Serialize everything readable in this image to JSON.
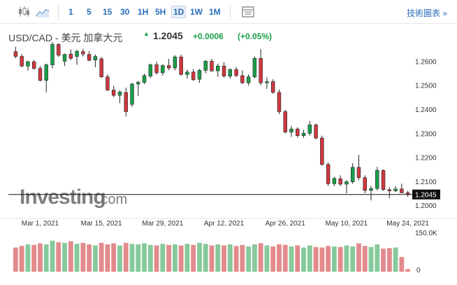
{
  "toolbar": {
    "intervals": [
      "1",
      "5",
      "15",
      "30",
      "1H",
      "5H",
      "1D",
      "1W",
      "1M"
    ],
    "active_interval": "1D",
    "tech_chart_label": "技術圖表 »",
    "icons": [
      "candlestick-icon",
      "line-chart-icon",
      "table-icon"
    ]
  },
  "header": {
    "pair": "USD/CAD - 美元 加拿大元",
    "price": "1.2045",
    "change": "+0.0006",
    "change_pct": "(+0.05%)",
    "up_color": "#1aa04a",
    "down_color": "#d0383e"
  },
  "watermark": {
    "brand": "Investing",
    "suffix": ".com"
  },
  "chart_data": {
    "type": "candlestick",
    "ylim": [
      1.198,
      1.268
    ],
    "y_ticks": [
      1.2,
      1.21,
      1.22,
      1.23,
      1.24,
      1.25,
      1.26
    ],
    "y_tick_labels": [
      "1.2000",
      "1.2100",
      "1.2200",
      "1.2300",
      "1.2400",
      "1.2500",
      "1.2600"
    ],
    "current_price": 1.2045,
    "current_price_label": "1.2045",
    "x_tick_labels": [
      "Mar 1, 2021",
      "Mar 15, 2021",
      "Mar 29, 2021",
      "Apr 12, 2021",
      "Apr 26, 2021",
      "May 10, 2021",
      "May 24, 2021"
    ],
    "x_tick_index": [
      4,
      14,
      24,
      34,
      44,
      54,
      64
    ],
    "ohlc": [
      [
        1.264,
        1.266,
        1.2612,
        1.262
      ],
      [
        1.262,
        1.263,
        1.2575,
        1.258
      ],
      [
        1.258,
        1.2602,
        1.256,
        1.2598
      ],
      [
        1.2598,
        1.2605,
        1.2565,
        1.257
      ],
      [
        1.257,
        1.258,
        1.2515,
        1.252
      ],
      [
        1.252,
        1.259,
        1.247,
        1.2585
      ],
      [
        1.2585,
        1.268,
        1.257,
        1.267
      ],
      [
        1.267,
        1.2675,
        1.2618,
        1.2625
      ],
      [
        1.26,
        1.2632,
        1.258,
        1.2628
      ],
      [
        1.263,
        1.2648,
        1.2605,
        1.2612
      ],
      [
        1.262,
        1.2648,
        1.2585,
        1.2641
      ],
      [
        1.264,
        1.2652,
        1.262,
        1.263
      ],
      [
        1.2628,
        1.2642,
        1.26,
        1.2604
      ],
      [
        1.2605,
        1.2628,
        1.2575,
        1.262
      ],
      [
        1.261,
        1.2618,
        1.253,
        1.2535
      ],
      [
        1.2535,
        1.2545,
        1.2475,
        1.248
      ],
      [
        1.248,
        1.2498,
        1.245,
        1.2458
      ],
      [
        1.2458,
        1.2478,
        1.2425,
        1.2472
      ],
      [
        1.247,
        1.249,
        1.237,
        1.239
      ],
      [
        1.242,
        1.251,
        1.241,
        1.2505
      ],
      [
        1.2505,
        1.2518,
        1.2455,
        1.2512
      ],
      [
        1.2512,
        1.2548,
        1.2505,
        1.254
      ],
      [
        1.2538,
        1.259,
        1.253,
        1.2585
      ],
      [
        1.2585,
        1.2598,
        1.2545,
        1.2552
      ],
      [
        1.2552,
        1.2588,
        1.254,
        1.2582
      ],
      [
        1.2582,
        1.261,
        1.2562,
        1.2572
      ],
      [
        1.2572,
        1.2625,
        1.2562,
        1.2618
      ],
      [
        1.2618,
        1.2628,
        1.254,
        1.2545
      ],
      [
        1.2545,
        1.2565,
        1.2528,
        1.2555
      ],
      [
        1.2555,
        1.2568,
        1.2518,
        1.2523
      ],
      [
        1.2525,
        1.2568,
        1.251,
        1.2562
      ],
      [
        1.2562,
        1.2605,
        1.255,
        1.26
      ],
      [
        1.26,
        1.261,
        1.2555,
        1.256
      ],
      [
        1.256,
        1.259,
        1.2535,
        1.258
      ],
      [
        1.258,
        1.2596,
        1.2532,
        1.2538
      ],
      [
        1.2538,
        1.257,
        1.2528,
        1.2565
      ],
      [
        1.2565,
        1.2575,
        1.2535,
        1.254
      ],
      [
        1.254,
        1.2562,
        1.2505,
        1.251
      ],
      [
        1.251,
        1.2545,
        1.2498,
        1.2535
      ],
      [
        1.2535,
        1.262,
        1.2528,
        1.2612
      ],
      [
        1.2612,
        1.265,
        1.25,
        1.251
      ],
      [
        1.251,
        1.2532,
        1.2485,
        1.2515
      ],
      [
        1.2515,
        1.2525,
        1.2465,
        1.247
      ],
      [
        1.247,
        1.2482,
        1.238,
        1.239
      ],
      [
        1.239,
        1.2398,
        1.23,
        1.2305
      ],
      [
        1.2305,
        1.233,
        1.2285,
        1.2318
      ],
      [
        1.2318,
        1.2325,
        1.2282,
        1.229
      ],
      [
        1.229,
        1.2315,
        1.228,
        1.23
      ],
      [
        1.23,
        1.235,
        1.229,
        1.2335
      ],
      [
        1.2335,
        1.234,
        1.2275,
        1.228
      ],
      [
        1.228,
        1.229,
        1.2165,
        1.217
      ],
      [
        1.217,
        1.2178,
        1.208,
        1.209
      ],
      [
        1.209,
        1.2118,
        1.208,
        1.2112
      ],
      [
        1.211,
        1.2125,
        1.208,
        1.2088
      ],
      [
        1.2088,
        1.2105,
        1.205,
        1.2098
      ],
      [
        1.2098,
        1.2175,
        1.209,
        1.2158
      ],
      [
        1.2158,
        1.221,
        1.2105,
        1.2115
      ],
      [
        1.2115,
        1.2125,
        1.205,
        1.2062
      ],
      [
        1.2062,
        1.208,
        1.202,
        1.207
      ],
      [
        1.207,
        1.216,
        1.2062,
        1.2145
      ],
      [
        1.2145,
        1.215,
        1.206,
        1.2065
      ],
      [
        1.2065,
        1.2075,
        1.203,
        1.206
      ],
      [
        1.206,
        1.208,
        1.2055,
        1.2068
      ],
      [
        1.2068,
        1.209,
        1.205,
        1.2052
      ],
      [
        1.2052,
        1.206,
        1.2035,
        1.2045
      ]
    ],
    "volume_ylim": [
      0,
      160
    ],
    "volume_tick_labels": [
      "150.0K",
      "0"
    ],
    "volume": [
      92,
      98,
      104,
      102,
      108,
      104,
      118,
      112,
      110,
      116,
      106,
      110,
      104,
      100,
      110,
      104,
      108,
      100,
      110,
      106,
      104,
      108,
      102,
      100,
      106,
      102,
      104,
      100,
      106,
      102,
      110,
      106,
      100,
      104,
      100,
      104,
      98,
      102,
      96,
      104,
      108,
      100,
      96,
      104,
      102,
      96,
      100,
      92,
      100,
      94,
      92,
      98,
      96,
      94,
      100,
      96,
      108,
      98,
      94,
      104,
      88,
      90,
      92,
      56,
      10
    ]
  }
}
